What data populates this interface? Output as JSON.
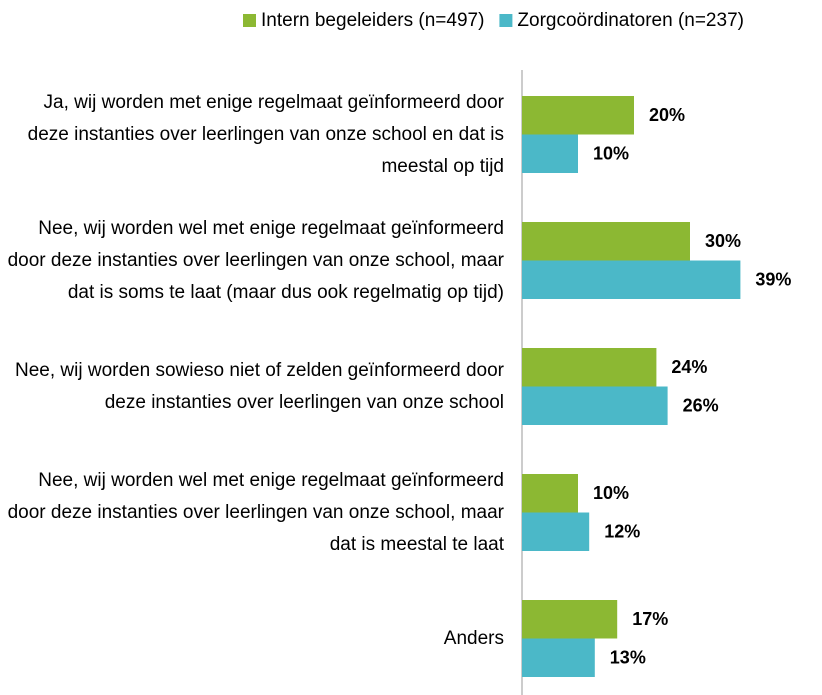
{
  "chart_data": {
    "type": "bar",
    "orientation": "horizontal",
    "categories": [
      "Ja, wij worden met enige regelmaat geïnformeerd door deze instanties over leerlingen van onze school en dat is meestal op tijd",
      "Nee, wij worden wel met enige regelmaat geïnformeerd door deze instanties over leerlingen van onze school, maar dat is soms te laat (maar dus ook regelmatig op tijd)",
      "Nee, wij worden sowieso niet of zelden geïnformeerd door deze instanties over leerlingen van onze school",
      "Nee, wij worden wel met enige regelmaat geïnformeerd door deze instanties over leerlingen van onze school, maar dat is meestal te laat",
      "Anders"
    ],
    "series": [
      {
        "name": "Intern begeleiders (n=497)",
        "color": "#8cb833",
        "values": [
          20,
          30,
          24,
          10,
          17
        ],
        "value_labels": [
          "20%",
          "30%",
          "24%",
          "10%",
          "17%"
        ]
      },
      {
        "name": "Zorgcoördinatoren (n=237)",
        "color": "#4bb8c8",
        "values": [
          10,
          39,
          26,
          12,
          13
        ],
        "value_labels": [
          "10%",
          "39%",
          "26%",
          "12%",
          "13%"
        ]
      }
    ],
    "legend": "top"
  }
}
